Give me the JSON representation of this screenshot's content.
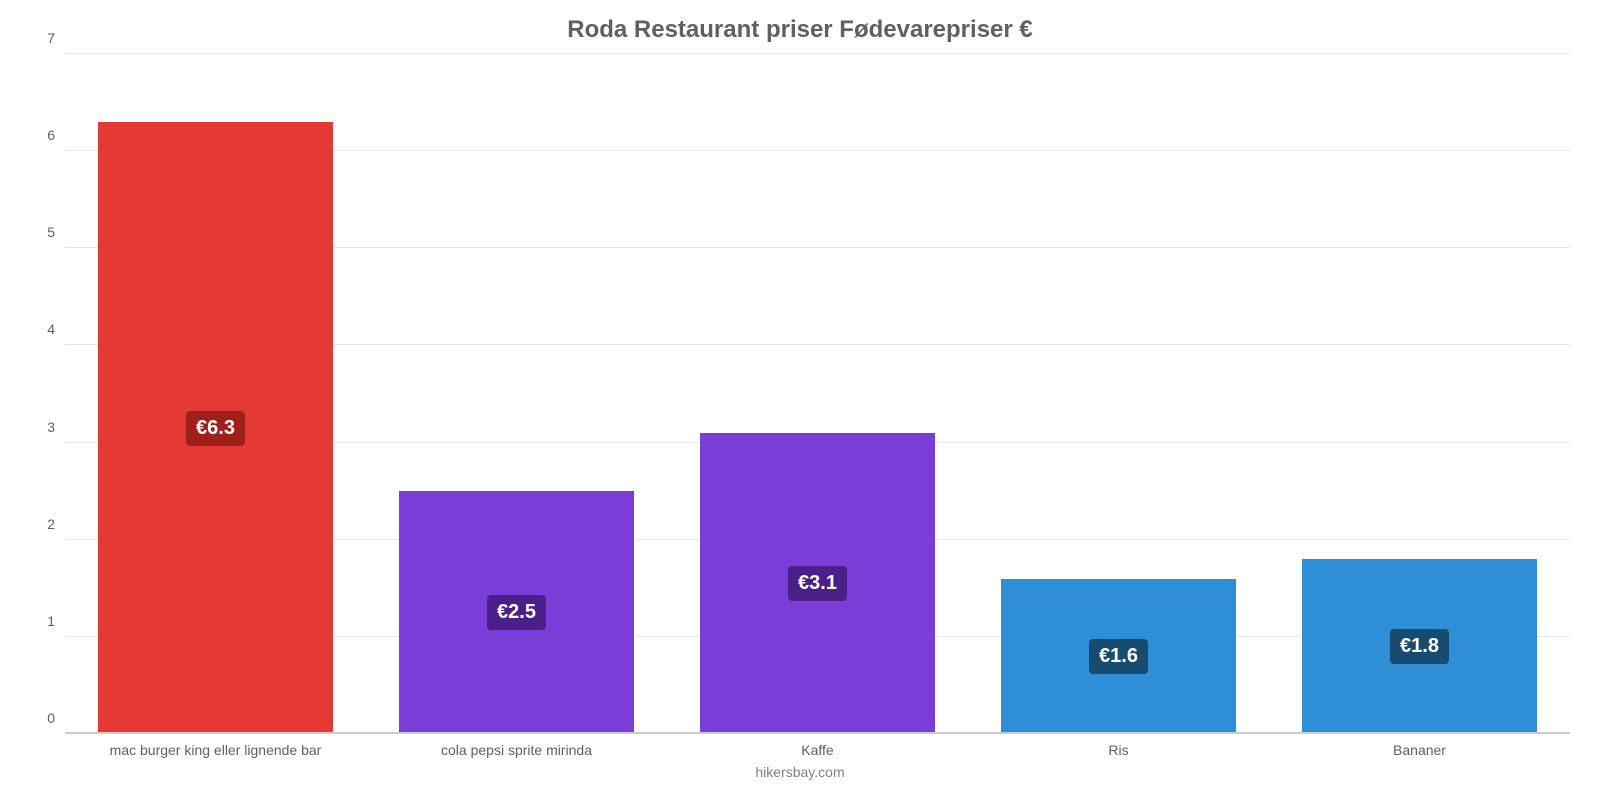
{
  "chart": {
    "type": "bar",
    "title": "Roda Restaurant priser Fødevarepriser €",
    "title_fontsize": 24,
    "title_color": "#606060",
    "attribution": "hikersbay.com",
    "background_color": "#ffffff",
    "grid_color": "#e8e8e8",
    "baseline_color": "#cccccc",
    "axis_label_color": "#606060",
    "axis_label_fontsize": 14,
    "value_label_fontsize": 20,
    "ylim": [
      0,
      7
    ],
    "ytick_step": 1,
    "yticks": [
      "0",
      "1",
      "2",
      "3",
      "4",
      "5",
      "6",
      "7"
    ],
    "bar_width_pct": 78,
    "categories": [
      "mac burger king eller lignende bar",
      "cola pepsi sprite mirinda",
      "Kaffe",
      "Ris",
      "Bananer"
    ],
    "values": [
      6.3,
      2.5,
      3.1,
      1.6,
      1.8
    ],
    "value_labels": [
      "€6.3",
      "€2.5",
      "€3.1",
      "€1.6",
      "€1.8"
    ],
    "bar_colors": [
      "#e53935",
      "#7a3dd8",
      "#7a3dd8",
      "#2f8fd6",
      "#2f8fd6"
    ],
    "badge_colors": [
      "#9f201b",
      "#4a1f8a",
      "#4a1f8a",
      "#174c70",
      "#174c70"
    ]
  }
}
